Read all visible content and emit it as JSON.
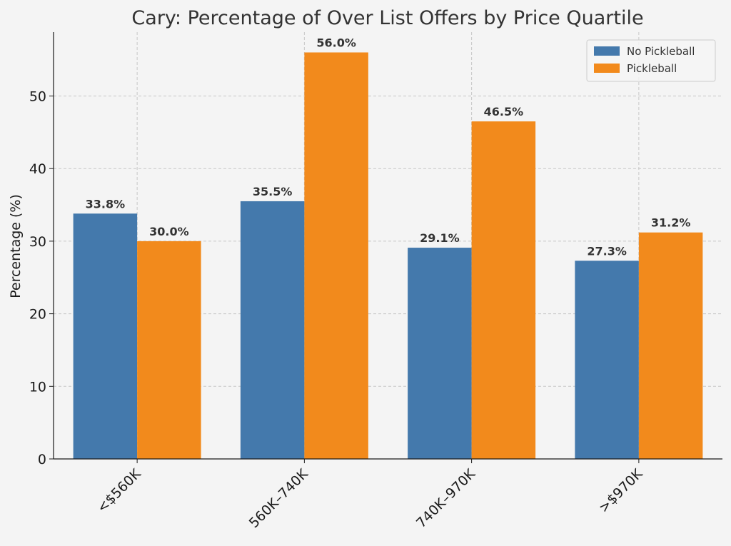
{
  "chart_data": {
    "type": "bar",
    "title": "Cary: Percentage of Over List Offers by Price Quartile",
    "xlabel": "",
    "ylabel": "Percentage (%)",
    "categories": [
      "<$560K",
      "560K–740K",
      "740K–970K",
      ">$970K"
    ],
    "series": [
      {
        "name": "No Pickleball",
        "color": "#4479ac",
        "values": [
          33.8,
          35.5,
          29.1,
          27.3
        ],
        "labels": [
          "33.8%",
          "35.5%",
          "29.1%",
          "27.3%"
        ]
      },
      {
        "name": "Pickleball",
        "color": "#f28a1c",
        "values": [
          30.0,
          56.0,
          46.5,
          31.2
        ],
        "labels": [
          "30.0%",
          "56.0%",
          "46.5%",
          "31.2%"
        ]
      }
    ],
    "ylim": [
      0,
      58.8
    ],
    "yticks": [
      0,
      10,
      20,
      30,
      40,
      50
    ],
    "ytick_labels": [
      "0",
      "10",
      "20",
      "30",
      "40",
      "50"
    ],
    "grid": true,
    "legend_position": "top-right"
  }
}
